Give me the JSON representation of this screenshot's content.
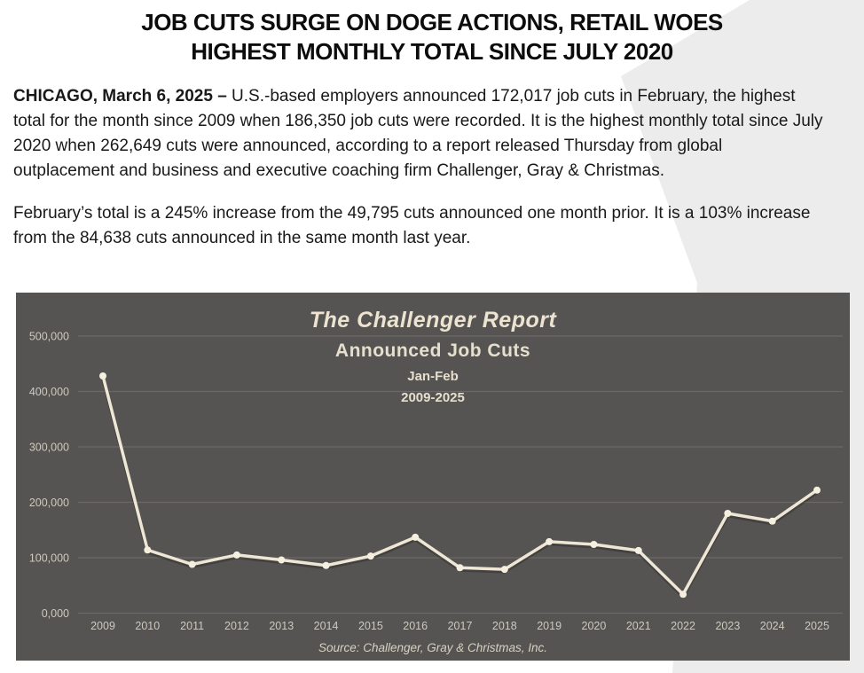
{
  "document": {
    "headline_line1": "JOB CUTS SURGE ON DOGE ACTIONS, RETAIL WOES",
    "headline_line2": "HIGHEST MONTHLY TOTAL SINCE JULY 2020",
    "paragraph1_lead": "CHICAGO, March 6, 2025 – ",
    "paragraph1_text": "U.S.-based employers announced 172,017 job cuts in February, the highest total for the month since 2009 when 186,350 job cuts were recorded. It is the highest monthly total since July 2020 when 262,649 cuts were announced, according to a report released Thursday from global outplacement and business and executive coaching firm Challenger, Gray & Christmas.",
    "paragraph2_text": "February’s total is a 245% increase from the 49,795 cuts announced one month prior. It is a 103% increase from the 84,638 cuts announced in the same month last year."
  },
  "chart_data": {
    "type": "line",
    "title": "The Challenger Report",
    "subtitle": "Announced Job Cuts",
    "period": "Jan-Feb",
    "year_range": "2009-2025",
    "source": "Source: Challenger, Gray & Christmas, Inc.",
    "categories": [
      "2009",
      "2010",
      "2011",
      "2012",
      "2013",
      "2014",
      "2015",
      "2016",
      "2017",
      "2018",
      "2019",
      "2020",
      "2021",
      "2022",
      "2023",
      "2024",
      "2025"
    ],
    "values": [
      428000,
      114000,
      88000,
      105000,
      96000,
      86000,
      103000,
      137000,
      82000,
      79000,
      129000,
      124000,
      113000,
      34000,
      180000,
      166000,
      222000
    ],
    "y_ticks": [
      {
        "label": "0,000",
        "value": 0
      },
      {
        "label": "100,000",
        "value": 100000
      },
      {
        "label": "200,000",
        "value": 200000
      },
      {
        "label": "300,000",
        "value": 300000
      },
      {
        "label": "400,000",
        "value": 400000
      },
      {
        "label": "500,000",
        "value": 500000
      }
    ],
    "ylim": [
      0,
      500000
    ],
    "grid": "horizontal",
    "legend": "none",
    "colors": {
      "plot_background": "#555452",
      "line": "#efe7d5",
      "line_shadow": "rgba(0,0,0,0.22)",
      "marker": "#f5efdf",
      "gridline": "#6b6962",
      "tick_text": "#cdc9bd",
      "title_text": "#ece3d0",
      "subtitle_text": "#e7dfcd",
      "source_text": "#d6d1c3",
      "corner_shape": "#ececec"
    }
  }
}
